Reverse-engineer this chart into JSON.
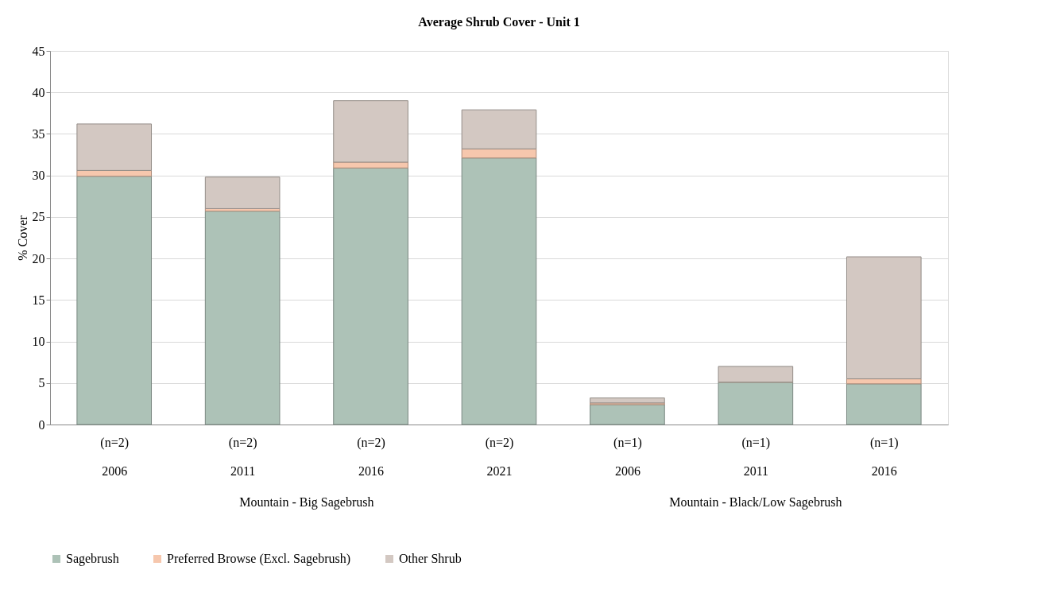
{
  "chart_data": {
    "type": "bar",
    "title": "Average Shrub Cover - Unit 1",
    "ylabel": "% Cover",
    "categories": [
      "(n=2)\n2006",
      "(n=2)\n2011",
      "(n=2)\n2016",
      "(n=2)\n2021",
      "(n=1)\n2006",
      "(n=1)\n2011",
      "(n=1)\n2016"
    ],
    "stacked": true,
    "series": [
      {
        "name": "Sagebrush",
        "color": "#adc2b7",
        "values": [
          29.9,
          25.7,
          30.9,
          32.1,
          2.4,
          5.1,
          4.9
        ]
      },
      {
        "name": "Preferred Browse (Excl. Sagebrush)",
        "color": "#f6c7ad",
        "values": [
          0.7,
          0.3,
          0.7,
          1.1,
          0.2,
          0,
          0.6
        ]
      },
      {
        "name": "Other Shrub",
        "color": "#d3c8c2",
        "values": [
          5.6,
          3.8,
          7.4,
          4.7,
          0.6,
          1.9,
          14.7
        ]
      }
    ],
    "annotations": [
      "Mountain - Big Sagebrush",
      "Mountain - Black/Low Sagebrush"
    ],
    "ylim": [
      0,
      45
    ],
    "yticks": [
      0,
      5,
      10,
      15,
      20,
      25,
      30,
      35,
      40,
      45
    ],
    "grid": "y",
    "legend": "bottom"
  }
}
